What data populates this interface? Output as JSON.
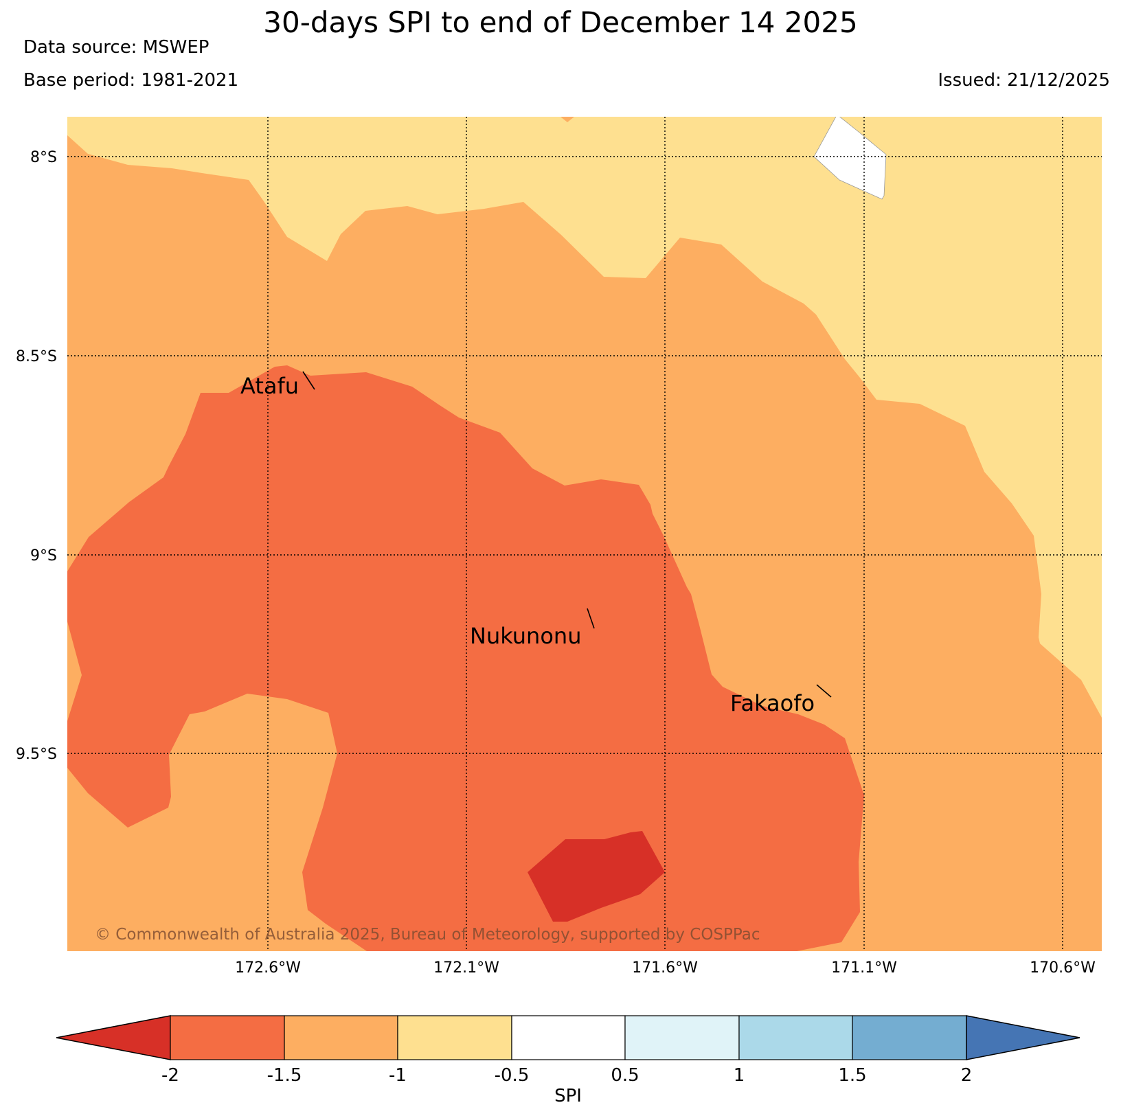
{
  "header": {
    "title": "30-days SPI to end of December 14 2025",
    "data_source": "Data source: MSWEP",
    "base_period": "Base period: 1981-2021",
    "issued": "Issued: 21/12/2025"
  },
  "map": {
    "lat_labels": [
      "8°S",
      "8.5°S",
      "9°S",
      "9.5°S"
    ],
    "lon_labels": [
      "172.6°W",
      "172.1°W",
      "171.6°W",
      "171.1°W",
      "170.6°W"
    ],
    "places": [
      {
        "name": "Atafu"
      },
      {
        "name": "Nukunonu"
      },
      {
        "name": "Fakaofo"
      }
    ],
    "copyright": "© Commonwealth of Australia 2025, Bureau of Meteorology, supported by COSPPac"
  },
  "colorbar": {
    "title": "SPI",
    "ticks": [
      "-2",
      "-1.5",
      "-1",
      "-0.5",
      "0.5",
      "1",
      "1.5",
      "2"
    ],
    "low_extend_color": "#d73027",
    "high_extend_color": "#4575b4",
    "colors": [
      "#f46d43",
      "#fdae61",
      "#fee090",
      "#ffffff",
      "#e0f3f8",
      "#abd9e9",
      "#74add1"
    ]
  },
  "palette": {
    "spi_lt_minus2": "#d73027",
    "spi_minus2_to_minus1_5": "#f46d43",
    "spi_minus1_5_to_minus1": "#fdae61",
    "spi_minus1_to_minus0_5": "#fee090",
    "spi_near_normal": "#ffffff"
  }
}
